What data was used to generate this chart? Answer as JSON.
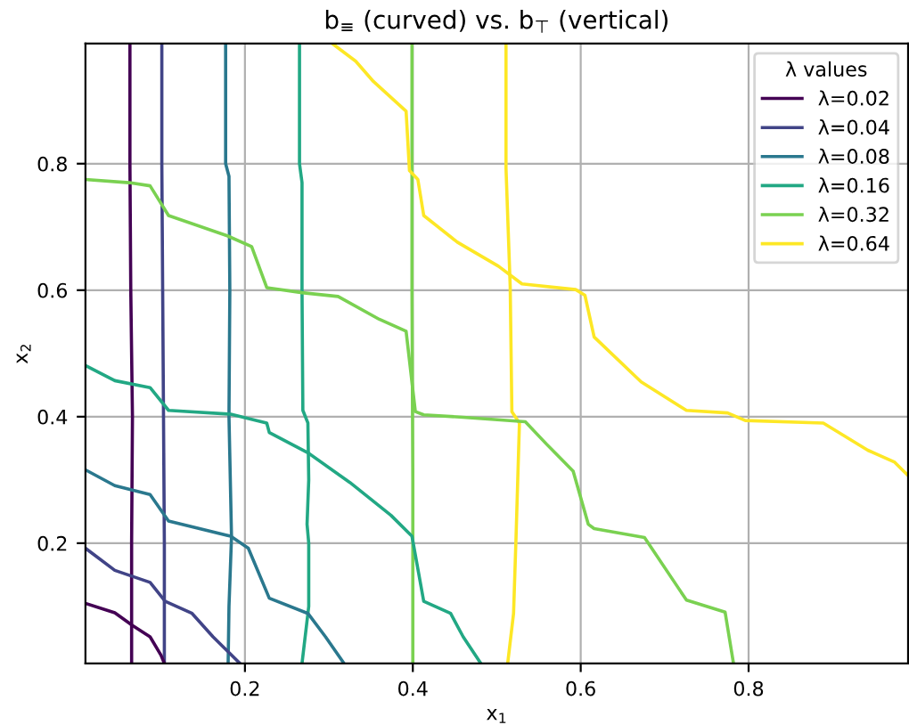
{
  "chart_data": {
    "type": "line",
    "title": "b$_{≡}$ (curved) vs. b$_{⊤}$ (vertical)",
    "xlabel": "x$_{1}$",
    "ylabel": "x$_{2}$",
    "legend_title": "λ values",
    "xlim": [
      0.01,
      0.99
    ],
    "ylim": [
      0.01,
      0.99
    ],
    "xticks": [
      0.2,
      0.4,
      0.6,
      0.8
    ],
    "yticks": [
      0.2,
      0.4,
      0.6,
      0.8
    ],
    "grid": true,
    "legend": "top right",
    "marker": "none",
    "line_style": "solid",
    "series": [
      {
        "name": "λ=0.02",
        "color": "#440154",
        "x": [
          0.063,
          0.063,
          0.064,
          0.066,
          0.065,
          0.065
        ],
        "values": [
          0.99,
          0.8,
          0.6,
          0.4,
          0.2,
          0.01
        ]
      },
      {
        "name": "λ=0.04",
        "color": "#414487",
        "x": [
          0.101,
          0.101,
          0.102,
          0.103,
          0.104,
          0.104
        ],
        "values": [
          0.99,
          0.8,
          0.6,
          0.4,
          0.2,
          0.01
        ]
      },
      {
        "name": "λ=0.08",
        "color": "#2a788e",
        "x": [
          0.177,
          0.177,
          0.181,
          0.182,
          0.181,
          0.184,
          0.181,
          0.18
        ],
        "values": [
          0.99,
          0.8,
          0.78,
          0.6,
          0.4,
          0.21,
          0.1,
          0.01
        ]
      },
      {
        "name": "λ=0.16",
        "color": "#22a884",
        "x": [
          0.265,
          0.265,
          0.268,
          0.268,
          0.269,
          0.275,
          0.276,
          0.274,
          0.276,
          0.276,
          0.268
        ],
        "values": [
          0.99,
          0.8,
          0.77,
          0.6,
          0.41,
          0.39,
          0.3,
          0.23,
          0.2,
          0.1,
          0.01
        ]
      },
      {
        "name": "λ=0.32",
        "color": "#7ad151",
        "x": [
          0.399,
          0.399,
          0.4,
          0.4
        ],
        "values": [
          0.99,
          0.6,
          0.3,
          0.01
        ]
      },
      {
        "name": "λ=0.64",
        "color": "#fde725",
        "x": [
          0.511,
          0.511,
          0.516,
          0.518,
          0.527,
          0.523,
          0.52,
          0.513
        ],
        "values": [
          0.99,
          0.793,
          0.606,
          0.408,
          0.39,
          0.211,
          0.089,
          0.01
        ]
      },
      {
        "color": "#440154",
        "x": [
          0.01,
          0.045,
          0.066,
          0.087,
          0.1,
          0.104
        ],
        "values": [
          0.105,
          0.09,
          0.07,
          0.052,
          0.023,
          0.01
        ]
      },
      {
        "color": "#414487",
        "x": [
          0.01,
          0.045,
          0.087,
          0.105,
          0.137,
          0.162,
          0.194
        ],
        "values": [
          0.192,
          0.157,
          0.138,
          0.108,
          0.089,
          0.052,
          0.01
        ]
      },
      {
        "color": "#2a788e",
        "x": [
          0.01,
          0.045,
          0.087,
          0.109,
          0.183,
          0.204,
          0.229,
          0.275,
          0.296,
          0.318
        ],
        "values": [
          0.316,
          0.291,
          0.277,
          0.235,
          0.211,
          0.192,
          0.113,
          0.089,
          0.052,
          0.01
        ]
      },
      {
        "color": "#22a884",
        "x": [
          0.01,
          0.045,
          0.087,
          0.109,
          0.183,
          0.226,
          0.229,
          0.275,
          0.325,
          0.374,
          0.399,
          0.413,
          0.445,
          0.46,
          0.481
        ],
        "values": [
          0.481,
          0.457,
          0.446,
          0.41,
          0.404,
          0.39,
          0.375,
          0.343,
          0.296,
          0.244,
          0.211,
          0.108,
          0.089,
          0.052,
          0.01
        ]
      },
      {
        "color": "#7ad151",
        "x": [
          0.01,
          0.062,
          0.087,
          0.109,
          0.179,
          0.208,
          0.226,
          0.268,
          0.311,
          0.36,
          0.392,
          0.403,
          0.413,
          0.46,
          0.534,
          0.559,
          0.591,
          0.609,
          0.616,
          0.676,
          0.726,
          0.772,
          0.782
        ],
        "values": [
          0.775,
          0.77,
          0.765,
          0.718,
          0.686,
          0.669,
          0.604,
          0.596,
          0.59,
          0.554,
          0.535,
          0.408,
          0.403,
          0.399,
          0.392,
          0.357,
          0.314,
          0.23,
          0.223,
          0.209,
          0.11,
          0.091,
          0.01
        ]
      },
      {
        "color": "#fde725",
        "x": [
          0.304,
          0.332,
          0.353,
          0.392,
          0.396,
          0.406,
          0.413,
          0.453,
          0.502,
          0.53,
          0.594,
          0.605,
          0.616,
          0.672,
          0.726,
          0.775,
          0.796,
          0.889,
          0.942,
          0.974,
          0.99
        ],
        "values": [
          0.99,
          0.962,
          0.93,
          0.883,
          0.789,
          0.775,
          0.718,
          0.676,
          0.638,
          0.61,
          0.601,
          0.592,
          0.526,
          0.455,
          0.41,
          0.406,
          0.394,
          0.39,
          0.347,
          0.328,
          0.307
        ]
      }
    ]
  }
}
